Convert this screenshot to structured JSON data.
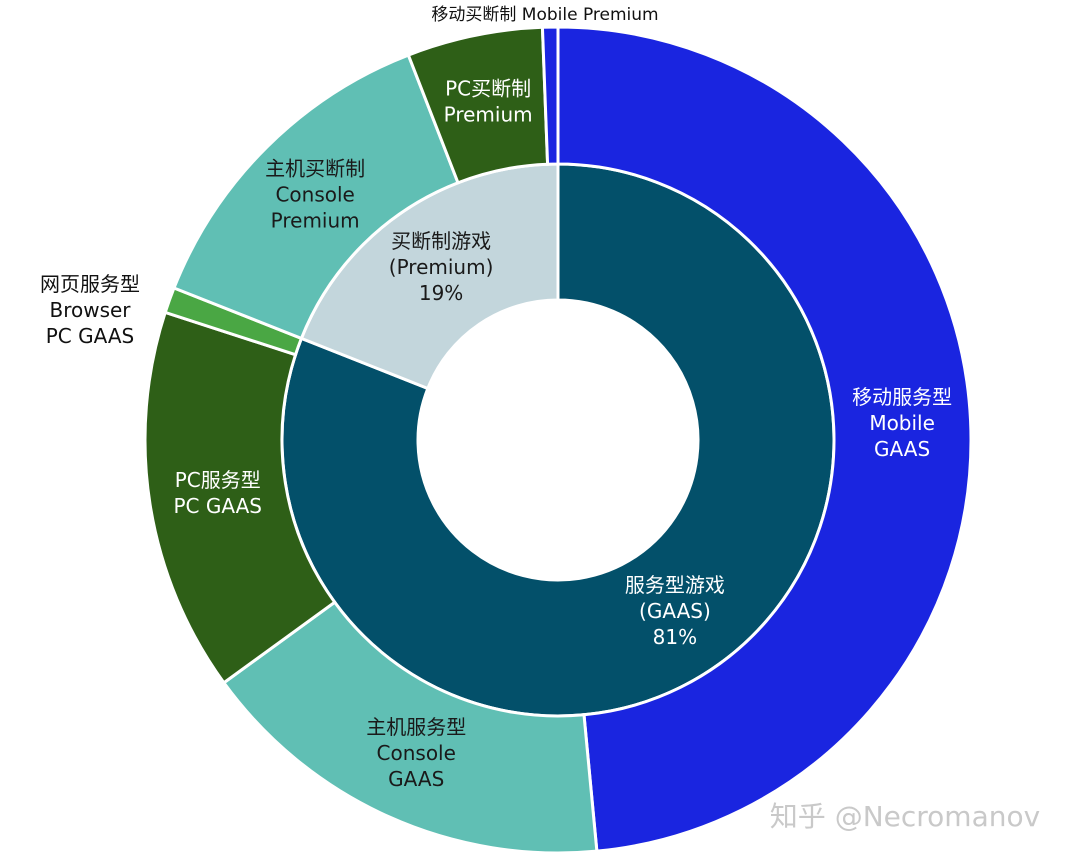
{
  "chart_data": {
    "type": "donut",
    "inner": {
      "labels": [
        [
          "服务型游戏",
          "(GAAS)"
        ],
        [
          "买断制游戏",
          "(Premium)"
        ]
      ],
      "values": [
        81,
        19
      ],
      "value_labels": [
        "81%",
        "19%"
      ],
      "colors": [
        "#03506a",
        "#c3d6dc"
      ]
    },
    "outer": {
      "labels": [
        [
          "移动服务型",
          "Mobile",
          "GAAS"
        ],
        [
          "主机服务型",
          "Console",
          "GAAS"
        ],
        [
          "PC服务型",
          "PC GAAS"
        ],
        [
          "网页服务型",
          "Browser",
          "PC GAAS"
        ],
        [
          "主机买断制",
          "Console",
          "Premium"
        ],
        [
          "PC买断制",
          "Premium"
        ],
        [
          "移动买断制 Mobile Premium"
        ]
      ],
      "values": [
        48.5,
        16.5,
        15,
        1,
        13.1,
        5.3,
        0.6
      ],
      "colors": [
        "#1a25e0",
        "#60bfb4",
        "#2e5f17",
        "#4aa744",
        "#60bfb4",
        "#2e5f17",
        "#1a25e0"
      ]
    },
    "watermark": "知乎 @Necromanov"
  }
}
